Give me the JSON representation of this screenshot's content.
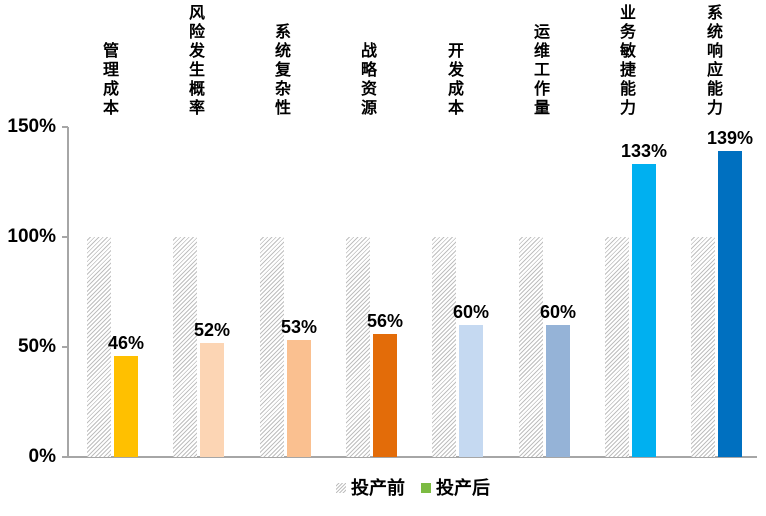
{
  "chart_data": {
    "type": "bar",
    "title": "",
    "categories": [
      "管理成本",
      "风险发生概率",
      "系统复杂性",
      "战略资源",
      "开发成本",
      "运维工作量",
      "业务敏捷能力",
      "系统响应能力"
    ],
    "series": [
      {
        "name": "投产前",
        "values": [
          100,
          100,
          100,
          100,
          100,
          100,
          100,
          100
        ],
        "fill": "hatch",
        "hatch_line_color": "#BFBFBF"
      },
      {
        "name": "投产后",
        "values": [
          46,
          52,
          53,
          56,
          60,
          60,
          133,
          139
        ],
        "colors": [
          "#FFC000",
          "#FCD5B4",
          "#FAC090",
          "#E36C09",
          "#C5D9F1",
          "#95B3D7",
          "#00B0F0",
          "#0070C0"
        ],
        "data_labels": [
          "46%",
          "52%",
          "53%",
          "56%",
          "60%",
          "60%",
          "133%",
          "139%"
        ]
      }
    ],
    "y_axis": {
      "ticks": [
        {
          "label": "150%",
          "value": 150
        },
        {
          "label": "100%",
          "value": 100
        },
        {
          "label": "50%",
          "value": 50
        },
        {
          "label": "0%",
          "value": 0
        }
      ],
      "range": [
        0,
        150
      ]
    },
    "grid": false,
    "axis_color": "#A6A6A6",
    "text_color": "#000000",
    "legend": {
      "position": "bottom",
      "items": [
        {
          "label": "投产前",
          "marker": "hatch"
        },
        {
          "label": "投产后",
          "marker_color": "#7CBB42"
        }
      ]
    }
  }
}
